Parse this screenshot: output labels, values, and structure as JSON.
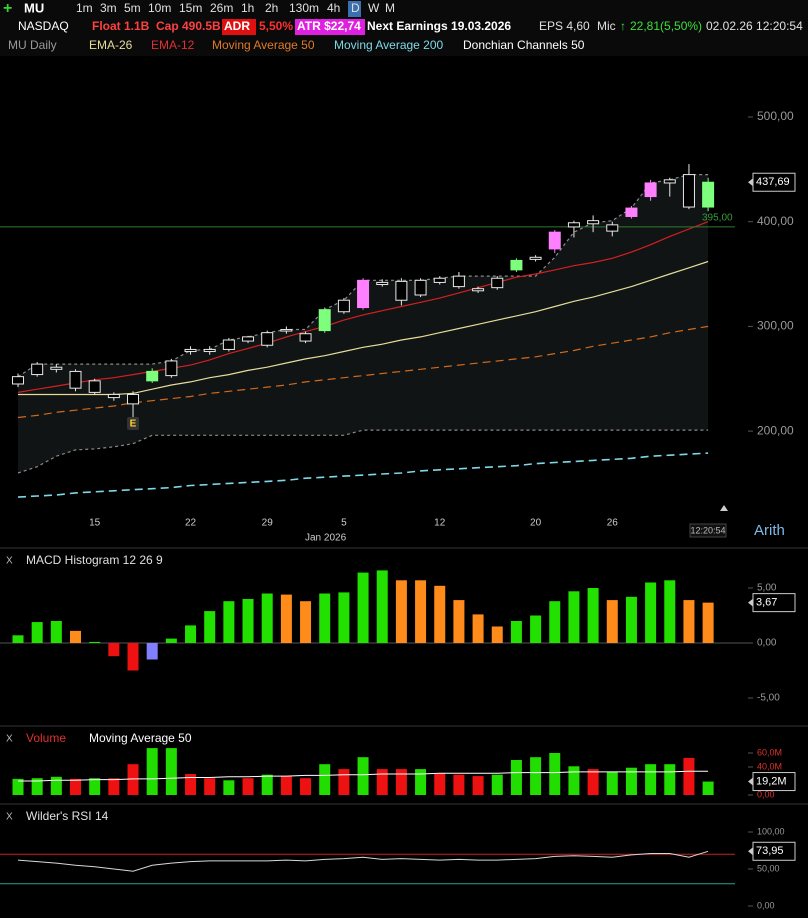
{
  "toolbar": {
    "symbol": "MU",
    "timeframes": [
      "1m",
      "3m",
      "5m",
      "10m",
      "15m",
      "26m",
      "1h",
      "2h",
      "130m",
      "4h",
      "D",
      "W",
      "M"
    ]
  },
  "info": {
    "exchange": "NASDAQ",
    "float": "Float 1.1B",
    "cap": "Cap 490.5B",
    "adr_label": "ADR",
    "adr": "5,50%",
    "atr": "ATR $22,74",
    "earnings": "Next Earnings 19.03.2026",
    "eps": "EPS 4,60",
    "mic": "Mic",
    "change": "22,81(5,50%)",
    "datetime": "02.02.26 12:20:54"
  },
  "legend": {
    "chart": "MU Daily",
    "ema26": "EMA-26",
    "ema12": "EMA-12",
    "ma50": "Moving Average 50",
    "ma200": "Moving Average 200",
    "donchian": "Donchian Channels 50"
  },
  "price_panel": {
    "yticks": [
      {
        "value": 500,
        "label": "500,00"
      },
      {
        "value": 400,
        "label": "400,00"
      },
      {
        "value": 300,
        "label": "300,00"
      },
      {
        "value": 200,
        "label": "200,00"
      }
    ],
    "last": {
      "value": 437.69,
      "label": "437,69"
    },
    "alert_line": {
      "value": 395,
      "label": "395,00",
      "color": "#2f7a2f"
    },
    "categories": [
      null,
      null,
      null,
      null,
      "15",
      null,
      null,
      null,
      null,
      "22",
      null,
      null,
      null,
      "29",
      null,
      null,
      null,
      "5",
      null,
      null,
      null,
      null,
      "12",
      null,
      null,
      null,
      null,
      "20",
      null,
      null,
      null,
      "26",
      null,
      null,
      null,
      null,
      null
    ],
    "month_label": "Jan 2026",
    "earnings_marker": "E",
    "time_label": "12:20:54",
    "scale_label": "Arith",
    "candles": [
      [
        245,
        255,
        242,
        252
      ],
      [
        254,
        266,
        252,
        264
      ],
      [
        259,
        264,
        256,
        261
      ],
      [
        257,
        259,
        238,
        241
      ],
      [
        248,
        250,
        235,
        237
      ],
      [
        232,
        237,
        229,
        235
      ],
      [
        226,
        238,
        209,
        235
      ],
      [
        248,
        260,
        246,
        257
      ],
      [
        253,
        269,
        251,
        267
      ],
      [
        276,
        281,
        273,
        278
      ],
      [
        276,
        281,
        273,
        278
      ],
      [
        278,
        289,
        276,
        287
      ],
      [
        286,
        291,
        284,
        290
      ],
      [
        282,
        296,
        280,
        294
      ],
      [
        296,
        300,
        293,
        297
      ],
      [
        293,
        295,
        284,
        286
      ],
      [
        296,
        318,
        294,
        316
      ],
      [
        314,
        327,
        312,
        325
      ],
      [
        318,
        346,
        316,
        344
      ],
      [
        340,
        345,
        338,
        342
      ],
      [
        343,
        346,
        320,
        325
      ],
      [
        330,
        346,
        328,
        344
      ],
      [
        342,
        348,
        340,
        346
      ],
      [
        348,
        352,
        336,
        338
      ],
      [
        336,
        338,
        332,
        334
      ],
      [
        337,
        348,
        335,
        346
      ],
      [
        354,
        365,
        352,
        363
      ],
      [
        364,
        368,
        362,
        366
      ],
      [
        374,
        392,
        370,
        390
      ],
      [
        395,
        401,
        385,
        399
      ],
      [
        398,
        406,
        390,
        401
      ],
      [
        397,
        400,
        386,
        391
      ],
      [
        405,
        415,
        403,
        413
      ],
      [
        424,
        440,
        420,
        437
      ],
      [
        437,
        442,
        424,
        440
      ],
      [
        445,
        455,
        412,
        414
      ],
      [
        414,
        442,
        410,
        437.69
      ]
    ],
    "candle_colors": [
      "#000000",
      "#000000",
      "#000000",
      "#000000",
      "#000000",
      "#000000",
      "#000000",
      "#7dff7d",
      "#000000",
      "#000000",
      "#000000",
      "#000000",
      "#000000",
      "#000000",
      "#000000",
      "#000000",
      "#7dff7d",
      "#000000",
      "#ff80ff",
      "#000000",
      "#000000",
      "#000000",
      "#000000",
      "#000000",
      "#000000",
      "#000000",
      "#7dff7d",
      "#000000",
      "#ff80ff",
      "#000000",
      "#000000",
      "#000000",
      "#ff80ff",
      "#ff80ff",
      "#000000",
      "#000000",
      "#7dff7d"
    ],
    "ema12": {
      "color": "#d42020",
      "values": [
        237,
        240,
        243,
        246,
        249,
        251,
        254,
        257,
        260,
        263,
        268,
        274,
        279,
        284,
        290,
        295,
        300,
        306,
        311,
        315,
        319,
        323,
        327,
        332,
        337,
        342,
        347,
        350,
        354,
        358,
        361,
        365,
        371,
        378,
        386,
        393,
        400
      ]
    },
    "ema26": {
      "color": "#e6dc9a",
      "values": [
        235,
        235,
        235,
        235,
        235,
        235,
        236,
        240,
        244,
        247,
        251,
        254,
        258,
        261,
        265,
        269,
        272,
        276,
        280,
        283,
        287,
        290,
        294,
        298,
        302,
        306,
        310,
        314,
        319,
        324,
        328,
        333,
        338,
        344,
        350,
        356,
        362
      ]
    },
    "ma50": {
      "color": "#d2691e",
      "dashed": true,
      "values": [
        213,
        215,
        218,
        220,
        222,
        224,
        227,
        229,
        231,
        233,
        236,
        238,
        240,
        242,
        244,
        247,
        249,
        251,
        253,
        255,
        257,
        259,
        261,
        263,
        265,
        267,
        269,
        271,
        274,
        277,
        281,
        284,
        287,
        290,
        294,
        297,
        300
      ]
    },
    "ma200": {
      "color": "#7fd8e6",
      "dashed": true,
      "values": [
        137,
        138,
        139,
        141,
        142,
        143,
        144,
        145,
        146,
        148,
        149,
        150,
        151,
        152,
        153,
        155,
        156,
        157,
        158,
        159,
        160,
        162,
        163,
        164,
        165,
        166,
        167,
        169,
        170,
        171,
        172,
        173,
        174,
        176,
        177,
        178,
        179
      ]
    },
    "donchian_upper": {
      "color": "#8a8a8a",
      "values": [
        252,
        264,
        264,
        264,
        264,
        264,
        264,
        264,
        267,
        277,
        278,
        287,
        290,
        294,
        297,
        297,
        316,
        325,
        344,
        344,
        344,
        344,
        346,
        348,
        348,
        348,
        348,
        348,
        366,
        390,
        399,
        401,
        413,
        437,
        440,
        445,
        445
      ]
    },
    "donchian_lower": {
      "color": "#8a8a8a",
      "values": [
        160,
        166,
        176,
        182,
        183,
        185,
        188,
        196,
        196,
        196,
        196,
        196,
        196,
        196,
        196,
        196,
        196,
        196,
        201,
        201,
        201,
        201,
        201,
        201,
        201,
        201,
        201,
        201,
        201,
        201,
        201,
        201,
        201,
        201,
        201,
        201,
        201
      ]
    }
  },
  "macd_panel": {
    "close": "X",
    "title": "MACD Histogram 12 26 9",
    "yticks": [
      {
        "value": 5,
        "label": "5,00"
      },
      {
        "value": 0,
        "label": "0,00"
      },
      {
        "value": -5,
        "label": "-5,00"
      }
    ],
    "last": {
      "value": 3.67,
      "label": "3,67"
    },
    "values": [
      0.7,
      1.9,
      2.0,
      1.1,
      0.1,
      -1.2,
      -2.5,
      -1.5,
      0.4,
      1.6,
      2.9,
      3.8,
      4.0,
      4.5,
      4.4,
      3.8,
      4.5,
      4.6,
      6.4,
      6.6,
      5.7,
      5.7,
      5.2,
      3.9,
      2.6,
      1.5,
      2.0,
      2.5,
      3.8,
      4.7,
      5.0,
      3.9,
      4.2,
      5.5,
      5.7,
      3.9,
      3.67
    ],
    "colors": [
      "#22e000",
      "#22e000",
      "#22e000",
      "#ff8c1a",
      "#22e000",
      "#ee1111",
      "#ee1111",
      "#8080ff",
      "#22e000",
      "#22e000",
      "#22e000",
      "#22e000",
      "#22e000",
      "#22e000",
      "#ff8c1a",
      "#ff8c1a",
      "#22e000",
      "#22e000",
      "#22e000",
      "#22e000",
      "#ff8c1a",
      "#ff8c1a",
      "#ff8c1a",
      "#ff8c1a",
      "#ff8c1a",
      "#ff8c1a",
      "#22e000",
      "#22e000",
      "#22e000",
      "#22e000",
      "#22e000",
      "#ff8c1a",
      "#22e000",
      "#22e000",
      "#22e000",
      "#ff8c1a",
      "#ff8c1a"
    ]
  },
  "volume_panel": {
    "close": "X",
    "title": "Volume",
    "ma_title": "Moving Average 50",
    "yticks": [
      {
        "value": 60,
        "label": "60,0M"
      },
      {
        "value": 40,
        "label": "40,0M"
      },
      {
        "value": 0,
        "label": "0,00"
      }
    ],
    "last": {
      "value": 19.2,
      "label": "19,2M"
    },
    "values": [
      23,
      24,
      26,
      23,
      24,
      24,
      44,
      67,
      67,
      30,
      24,
      21,
      24,
      29,
      27,
      24,
      44,
      37,
      54,
      37,
      37,
      37,
      31,
      29,
      27,
      29,
      50,
      54,
      60,
      41,
      37,
      33,
      39,
      44,
      44,
      53,
      19.2
    ],
    "colors": [
      "#22dd00",
      "#22dd00",
      "#22dd00",
      "#ee1111",
      "#22dd00",
      "#ee1111",
      "#ee1111",
      "#22dd00",
      "#22dd00",
      "#ee1111",
      "#ee1111",
      "#22dd00",
      "#ee1111",
      "#22dd00",
      "#ee1111",
      "#ee1111",
      "#22dd00",
      "#ee1111",
      "#22dd00",
      "#ee1111",
      "#ee1111",
      "#22dd00",
      "#ee1111",
      "#ee1111",
      "#ee1111",
      "#22dd00",
      "#22dd00",
      "#22dd00",
      "#22dd00",
      "#22dd00",
      "#ee1111",
      "#22dd00",
      "#22dd00",
      "#22dd00",
      "#22dd00",
      "#ee1111",
      "#22dd00"
    ],
    "ma": {
      "color": "#ffffff",
      "values": [
        20,
        20,
        21,
        21,
        22,
        22,
        23,
        23,
        24,
        25,
        25,
        26,
        26,
        27,
        27,
        28,
        28,
        29,
        29,
        30,
        30,
        30,
        31,
        31,
        31,
        31,
        32,
        32,
        32,
        33,
        33,
        33,
        33,
        33,
        33,
        34,
        34
      ]
    }
  },
  "rsi_panel": {
    "close": "X",
    "title": "Wilder's RSI 14",
    "yticks": [
      {
        "value": 100,
        "label": "100,00"
      },
      {
        "value": 50,
        "label": "50,00"
      },
      {
        "value": 0,
        "label": "0,00"
      }
    ],
    "last": {
      "value": 73.95,
      "label": "73,95"
    },
    "levels": [
      {
        "value": 70,
        "color": "#c82020"
      },
      {
        "value": 30,
        "color": "#2a9d8f"
      }
    ],
    "color": "#d8d8d8",
    "values": [
      62,
      60,
      58,
      55,
      53,
      50,
      47,
      55,
      58,
      60,
      61,
      61,
      61,
      61,
      62,
      61,
      63,
      64,
      66,
      63,
      64,
      63,
      62,
      63,
      62,
      62,
      63,
      64,
      67,
      68,
      67,
      66,
      69,
      71,
      71,
      66,
      73.95
    ]
  }
}
